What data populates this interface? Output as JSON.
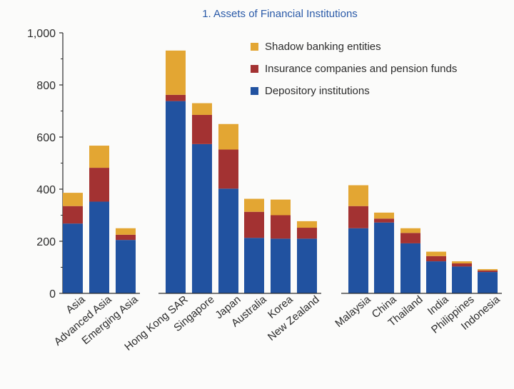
{
  "chart_data": {
    "type": "bar",
    "stacked": true,
    "title": "1. Assets of Financial Institutions",
    "xlabel": "",
    "ylabel": "",
    "ylim": [
      0,
      1000
    ],
    "yticks": [
      0,
      200,
      400,
      600,
      800,
      1000
    ],
    "ytick_labels": [
      "0",
      "200",
      "400",
      "600",
      "800",
      "1,000"
    ],
    "grid": false,
    "legend_position": "top-right",
    "categories": [
      "Asia",
      "Advanced Asia",
      "Emerging Asia",
      "Hong Kong SAR",
      "Singapore",
      "Japan",
      "Australia",
      "Korea",
      "New Zealand",
      "Malaysia",
      "China",
      "Thailand",
      "India",
      "Philippines",
      "Indonesia"
    ],
    "groups": [
      [
        0,
        1,
        2
      ],
      [
        3,
        4,
        5,
        6,
        7,
        8
      ],
      [
        9,
        10,
        11,
        12,
        13,
        14
      ]
    ],
    "series": [
      {
        "name": "Depository institutions",
        "color": "#2152a0",
        "values": [
          268,
          352,
          205,
          738,
          573,
          402,
          213,
          210,
          210,
          250,
          272,
          192,
          123,
          103,
          82
        ]
      },
      {
        "name": "Insurance companies and pension funds",
        "color": "#a33232",
        "values": [
          67,
          130,
          20,
          24,
          112,
          150,
          100,
          90,
          42,
          85,
          15,
          40,
          20,
          12,
          6
        ]
      },
      {
        "name": "Shadow banking entities",
        "color": "#e3a633",
        "values": [
          51,
          85,
          25,
          170,
          45,
          98,
          50,
          60,
          25,
          80,
          23,
          18,
          17,
          8,
          5
        ]
      }
    ]
  }
}
